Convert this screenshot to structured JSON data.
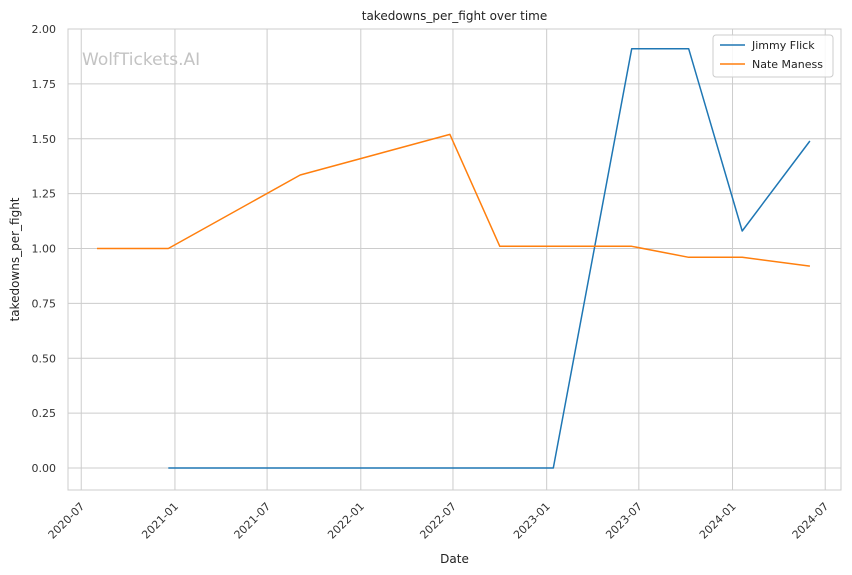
{
  "chart_data": {
    "type": "line",
    "title": "takedowns_per_fight over time",
    "xlabel": "Date",
    "ylabel": "takedowns_per_fight",
    "watermark": "WolfTickets.AI",
    "x_ticks": [
      "2020-07",
      "2021-01",
      "2021-07",
      "2022-01",
      "2022-07",
      "2023-01",
      "2023-07",
      "2024-01",
      "2024-07"
    ],
    "y_ticks": [
      "0.00",
      "0.25",
      "0.50",
      "0.75",
      "1.00",
      "1.25",
      "1.50",
      "1.75",
      "2.00"
    ],
    "xlim": [
      "2020-06-05",
      "2024-08-01"
    ],
    "ylim": [
      -0.1,
      2.0
    ],
    "grid": true,
    "legend_position": "top-right",
    "colors": {
      "Jimmy Flick": "#1f77b4",
      "Nate Maness": "#ff7f0e"
    },
    "series": [
      {
        "name": "Jimmy Flick",
        "color": "#1f77b4",
        "points": [
          {
            "x": "2020-12-19",
            "y": 0.0
          },
          {
            "x": "2023-01-14",
            "y": 0.0
          },
          {
            "x": "2023-06-17",
            "y": 1.91
          },
          {
            "x": "2023-10-07",
            "y": 1.91
          },
          {
            "x": "2024-01-20",
            "y": 1.08
          },
          {
            "x": "2024-06-01",
            "y": 1.49
          }
        ]
      },
      {
        "name": "Nate Maness",
        "color": "#ff7f0e",
        "points": [
          {
            "x": "2020-08-01",
            "y": 1.0
          },
          {
            "x": "2020-12-19",
            "y": 1.0
          },
          {
            "x": "2021-09-04",
            "y": 1.335
          },
          {
            "x": "2022-06-25",
            "y": 1.52
          },
          {
            "x": "2022-10-01",
            "y": 1.01
          },
          {
            "x": "2023-06-17",
            "y": 1.01
          },
          {
            "x": "2023-10-07",
            "y": 0.96
          },
          {
            "x": "2024-01-20",
            "y": 0.96
          },
          {
            "x": "2024-06-01",
            "y": 0.92
          }
        ]
      }
    ]
  }
}
